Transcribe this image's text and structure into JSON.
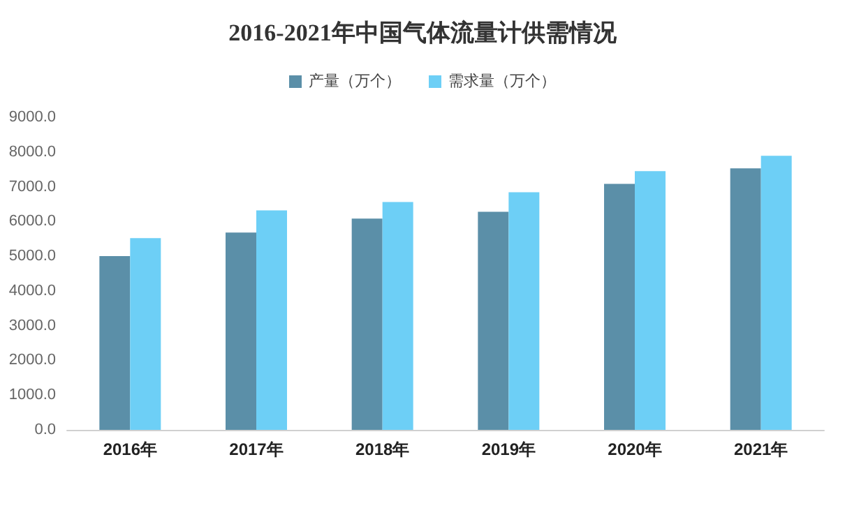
{
  "chart_data": {
    "type": "bar",
    "title": "2016-2021年中国气体流量计供需情况",
    "categories": [
      "2016年",
      "2017年",
      "2018年",
      "2019年",
      "2020年",
      "2021年"
    ],
    "series": [
      {
        "name": "产量（万个）",
        "color": "#5b8fa8",
        "values": [
          5000,
          5680,
          6080,
          6280,
          7080,
          7530
        ]
      },
      {
        "name": "需求量（万个）",
        "color": "#6dcff6",
        "values": [
          5520,
          6320,
          6560,
          6840,
          7450,
          7890
        ]
      }
    ],
    "ylim": [
      0,
      9000
    ],
    "yticks": [
      {
        "value": 0,
        "label": "0.0"
      },
      {
        "value": 1000,
        "label": "1000.0"
      },
      {
        "value": 2000,
        "label": "2000.0"
      },
      {
        "value": 3000,
        "label": "3000.0"
      },
      {
        "value": 4000,
        "label": "4000.0"
      },
      {
        "value": 5000,
        "label": "5000.0"
      },
      {
        "value": 6000,
        "label": "6000.0"
      },
      {
        "value": 7000,
        "label": "7000.0"
      },
      {
        "value": 8000,
        "label": "8000.0"
      },
      {
        "value": 9000,
        "label": "9000.0"
      }
    ],
    "grid": false,
    "legend": "top"
  }
}
